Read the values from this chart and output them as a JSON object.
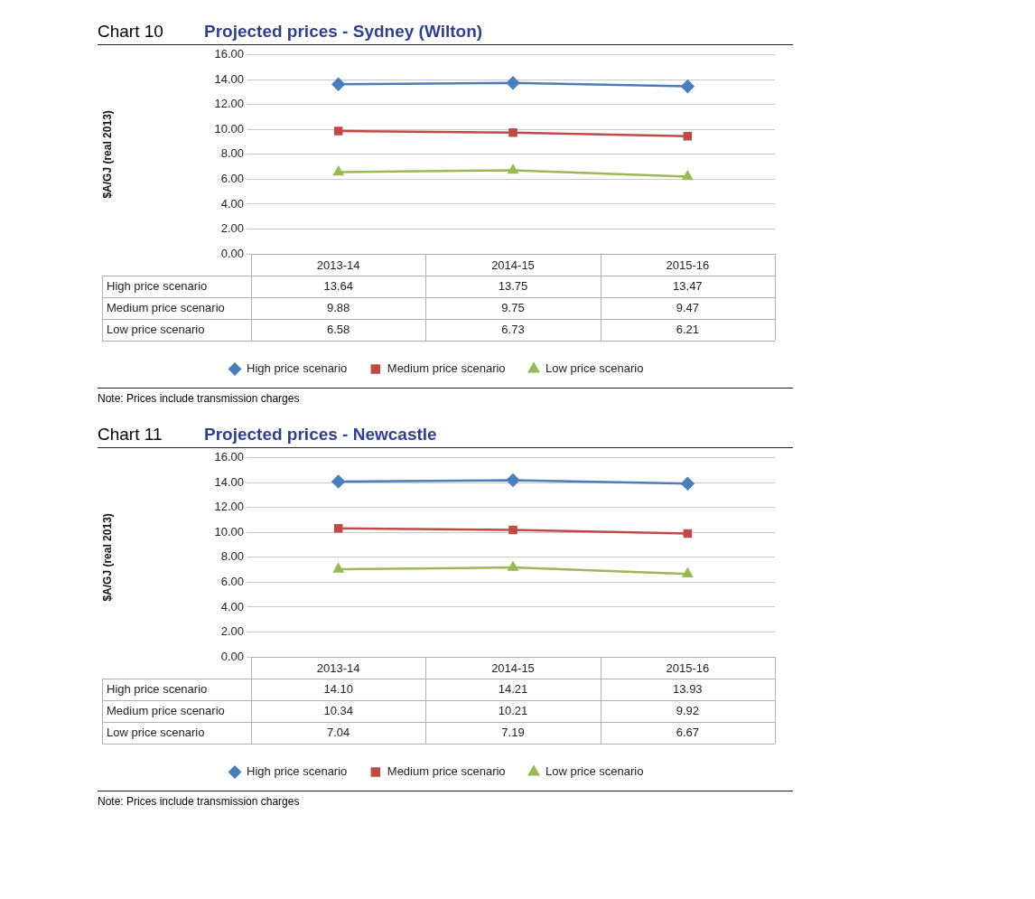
{
  "chart_data": [
    {
      "type": "line",
      "subtitle": "Chart 10",
      "title": "Projected prices - Sydney (Wilton)",
      "ylabel": "$A/GJ (real 2013)",
      "categories": [
        "2013-14",
        "2014-15",
        "2015-16"
      ],
      "series": [
        {
          "name": "High price scenario",
          "color": "#4a7ebb",
          "marker": "diamond",
          "values": [
            13.64,
            13.75,
            13.47
          ],
          "value_labels": [
            "13.64",
            "13.75",
            "13.47"
          ]
        },
        {
          "name": "Medium price scenario",
          "color": "#be4b48",
          "marker": "square",
          "values": [
            9.88,
            9.75,
            9.47
          ],
          "value_labels": [
            "9.88",
            "9.75",
            "9.47"
          ]
        },
        {
          "name": "Low price scenario",
          "color": "#98b954",
          "marker": "triangle",
          "values": [
            6.58,
            6.73,
            6.21
          ],
          "value_labels": [
            "6.58",
            "6.73",
            "6.21"
          ]
        }
      ],
      "ylim": [
        0,
        16
      ],
      "yticks": [
        {
          "value": 0,
          "label": "0.00"
        },
        {
          "value": 2,
          "label": "2.00"
        },
        {
          "value": 4,
          "label": "4.00"
        },
        {
          "value": 6,
          "label": "6.00"
        },
        {
          "value": 8,
          "label": "8.00"
        },
        {
          "value": 10,
          "label": "10.00"
        },
        {
          "value": 12,
          "label": "12.00"
        },
        {
          "value": 14,
          "label": "14.00"
        },
        {
          "value": 16,
          "label": "16.00"
        }
      ],
      "grid": "y",
      "legend": "bottom",
      "annotations": [
        "Note: Prices include transmission charges"
      ]
    },
    {
      "type": "line",
      "subtitle": "Chart 11",
      "title": "Projected prices - Newcastle",
      "ylabel": "$A/GJ (real 2013)",
      "categories": [
        "2013-14",
        "2014-15",
        "2015-16"
      ],
      "series": [
        {
          "name": "High price scenario",
          "color": "#4a7ebb",
          "marker": "diamond",
          "values": [
            14.1,
            14.21,
            13.93
          ],
          "value_labels": [
            "14.10",
            "14.21",
            "13.93"
          ]
        },
        {
          "name": "Medium price scenario",
          "color": "#be4b48",
          "marker": "square",
          "values": [
            10.34,
            10.21,
            9.92
          ],
          "value_labels": [
            "10.34",
            "10.21",
            "9.92"
          ]
        },
        {
          "name": "Low price scenario",
          "color": "#98b954",
          "marker": "triangle",
          "values": [
            7.04,
            7.19,
            6.67
          ],
          "value_labels": [
            "7.04",
            "7.19",
            "6.67"
          ]
        }
      ],
      "ylim": [
        0,
        16
      ],
      "yticks": [
        {
          "value": 0,
          "label": "0.00"
        },
        {
          "value": 2,
          "label": "2.00"
        },
        {
          "value": 4,
          "label": "4.00"
        },
        {
          "value": 6,
          "label": "6.00"
        },
        {
          "value": 8,
          "label": "8.00"
        },
        {
          "value": 10,
          "label": "10.00"
        },
        {
          "value": 12,
          "label": "12.00"
        },
        {
          "value": 14,
          "label": "14.00"
        },
        {
          "value": 16,
          "label": "16.00"
        }
      ],
      "grid": "y",
      "legend": "bottom",
      "annotations": [
        "Note: Prices include transmission charges"
      ]
    }
  ]
}
